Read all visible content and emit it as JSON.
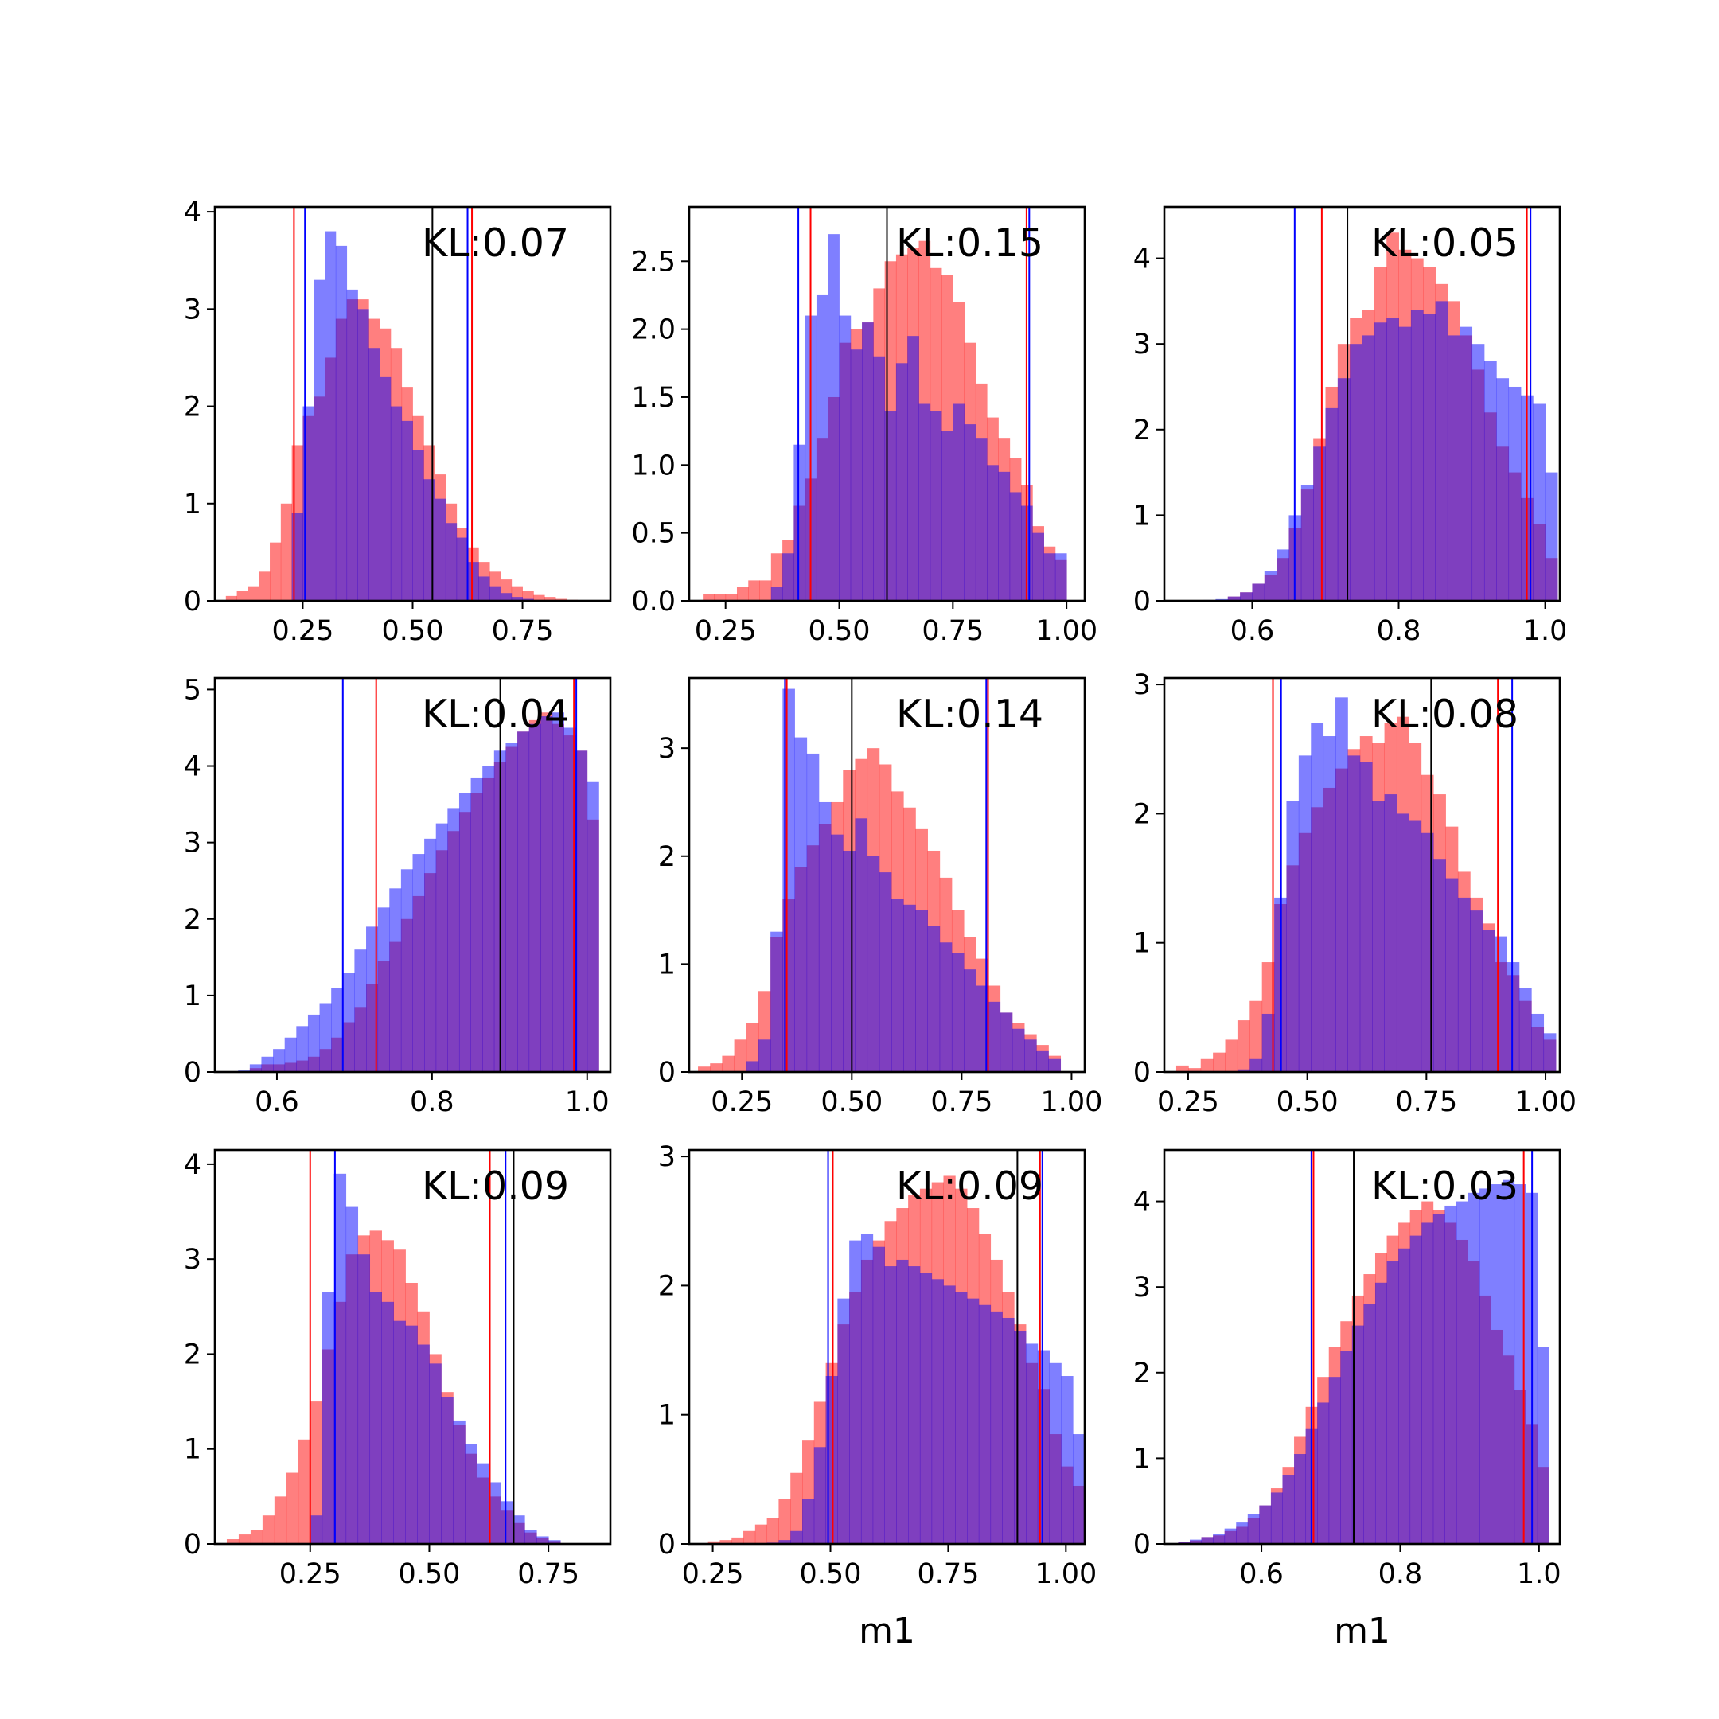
{
  "colors": {
    "red": "#ff0000",
    "blue": "#0000ff",
    "overlap": "#7a3fc4",
    "frame": "#000000"
  },
  "chart_data": [
    {
      "type": "histogram",
      "annotation": "KL:0.07",
      "xlabel": "",
      "xlim": [
        0.05,
        0.95
      ],
      "ylim": [
        0,
        4.05
      ],
      "xticks": [
        0.25,
        0.5,
        0.75
      ],
      "xtick_labels": [
        "0.25",
        "0.50",
        "0.75"
      ],
      "yticks": [
        0,
        1,
        2,
        3,
        4
      ],
      "ytick_labels": [
        "0",
        "1",
        "2",
        "3",
        "4"
      ],
      "bin_start": 0.075,
      "bin_width": 0.025,
      "red_values": [
        0.05,
        0.1,
        0.15,
        0.3,
        0.6,
        1.0,
        1.6,
        1.9,
        2.1,
        2.5,
        2.9,
        3.1,
        3.1,
        2.9,
        2.8,
        2.6,
        2.2,
        1.9,
        1.6,
        1.3,
        1.0,
        0.75,
        0.55,
        0.4,
        0.3,
        0.22,
        0.15,
        0.1,
        0.06,
        0.04,
        0.02,
        0.01
      ],
      "blue_values": [
        0,
        0,
        0,
        0,
        0,
        0,
        0.9,
        2.0,
        3.3,
        3.8,
        3.65,
        3.2,
        3.0,
        2.6,
        2.3,
        2.0,
        1.85,
        1.55,
        1.25,
        1.05,
        0.8,
        0.65,
        0.4,
        0.25,
        0.15,
        0.08,
        0.04,
        0.02,
        0,
        0,
        0,
        0
      ],
      "red_lines": [
        0.23,
        0.635
      ],
      "blue_lines": [
        0.255,
        0.625
      ],
      "black_lines": [
        0.545
      ]
    },
    {
      "type": "histogram",
      "annotation": "KL:0.15",
      "xlabel": "",
      "xlim": [
        0.17,
        1.04
      ],
      "ylim": [
        0,
        2.9
      ],
      "xticks": [
        0.25,
        0.5,
        0.75,
        1.0
      ],
      "xtick_labels": [
        "0.25",
        "0.50",
        "0.75",
        "1.00"
      ],
      "yticks": [
        0,
        0.5,
        1.0,
        1.5,
        2.0,
        2.5
      ],
      "ytick_labels": [
        "0.0",
        "0.5",
        "1.0",
        "1.5",
        "2.0",
        "2.5"
      ],
      "bin_start": 0.2,
      "bin_width": 0.025,
      "red_values": [
        0.05,
        0.05,
        0.05,
        0.1,
        0.15,
        0.15,
        0.35,
        0.45,
        0.7,
        0.9,
        1.2,
        1.5,
        1.9,
        2.0,
        2.05,
        2.3,
        2.5,
        2.55,
        2.6,
        2.65,
        2.45,
        2.4,
        2.2,
        1.9,
        1.6,
        1.35,
        1.2,
        1.05,
        0.85,
        0.55,
        0.4,
        0.3
      ],
      "blue_values": [
        0,
        0,
        0,
        0,
        0,
        0,
        0.1,
        0.35,
        1.15,
        2.1,
        2.25,
        2.7,
        2.1,
        1.85,
        2.05,
        1.8,
        1.4,
        1.75,
        1.95,
        1.45,
        1.4,
        1.25,
        1.45,
        1.3,
        1.2,
        1.0,
        0.95,
        0.8,
        0.7,
        0.5,
        0.35,
        0.35
      ],
      "red_lines": [
        0.437,
        0.912
      ],
      "blue_lines": [
        0.41,
        0.918
      ],
      "black_lines": [
        0.605
      ]
    },
    {
      "type": "histogram",
      "annotation": "KL:0.05",
      "xlabel": "",
      "xlim": [
        0.48,
        1.02
      ],
      "ylim": [
        0,
        4.6
      ],
      "xticks": [
        0.6,
        0.8,
        1.0
      ],
      "xtick_labels": [
        "0.6",
        "0.8",
        "1.0"
      ],
      "yticks": [
        0,
        1,
        2,
        3,
        4
      ],
      "ytick_labels": [
        "0",
        "1",
        "2",
        "3",
        "4"
      ],
      "bin_start": 0.5,
      "bin_width": 0.01667,
      "red_values": [
        0,
        0,
        0,
        0,
        0.05,
        0.1,
        0.2,
        0.3,
        0.5,
        0.85,
        1.3,
        1.9,
        2.5,
        3.0,
        3.3,
        3.4,
        3.9,
        4.3,
        4.1,
        4.0,
        3.9,
        3.7,
        3.5,
        3.1,
        2.7,
        2.2,
        1.8,
        1.5,
        1.2,
        0.9,
        0.5
      ],
      "blue_values": [
        0,
        0,
        0.01,
        0.02,
        0.05,
        0.1,
        0.2,
        0.35,
        0.6,
        1.0,
        1.35,
        1.8,
        2.25,
        2.6,
        3.0,
        3.1,
        3.25,
        3.3,
        3.2,
        3.4,
        3.35,
        3.5,
        3.1,
        3.2,
        3.0,
        2.8,
        2.6,
        2.5,
        2.4,
        2.3,
        1.5
      ],
      "red_lines": [
        0.695,
        0.975
      ],
      "blue_lines": [
        0.658,
        0.98
      ],
      "black_lines": [
        0.73
      ]
    },
    {
      "type": "histogram",
      "annotation": "KL:0.04",
      "xlabel": "",
      "xlim": [
        0.52,
        1.03
      ],
      "ylim": [
        0,
        5.15
      ],
      "xticks": [
        0.6,
        0.8,
        1.0
      ],
      "xtick_labels": [
        "0.6",
        "0.8",
        "1.0"
      ],
      "yticks": [
        0,
        1,
        2,
        3,
        4,
        5
      ],
      "ytick_labels": [
        "0",
        "1",
        "2",
        "3",
        "4",
        "5"
      ],
      "bin_start": 0.55,
      "bin_width": 0.015,
      "red_values": [
        0,
        0.05,
        0.1,
        0.1,
        0.12,
        0.15,
        0.2,
        0.3,
        0.45,
        0.65,
        0.85,
        1.15,
        1.45,
        1.7,
        2.0,
        2.3,
        2.6,
        2.9,
        3.15,
        3.4,
        3.65,
        3.85,
        4.05,
        4.25,
        4.45,
        4.6,
        4.7,
        4.55,
        4.4,
        4.2,
        3.3
      ],
      "blue_values": [
        0.02,
        0.1,
        0.2,
        0.3,
        0.45,
        0.6,
        0.75,
        0.9,
        1.1,
        1.3,
        1.6,
        1.9,
        2.15,
        2.4,
        2.65,
        2.85,
        3.05,
        3.25,
        3.45,
        3.65,
        3.85,
        4.0,
        4.2,
        4.3,
        4.45,
        4.55,
        4.65,
        4.7,
        4.5,
        4.2,
        3.8
      ],
      "red_lines": [
        0.728,
        0.983
      ],
      "blue_lines": [
        0.685,
        0.986
      ],
      "black_lines": [
        0.888
      ]
    },
    {
      "type": "histogram",
      "annotation": "KL:0.14",
      "xlabel": "",
      "xlim": [
        0.13,
        1.03
      ],
      "ylim": [
        0,
        3.65
      ],
      "xticks": [
        0.25,
        0.5,
        0.75,
        1.0
      ],
      "xtick_labels": [
        "0.25",
        "0.50",
        "0.75",
        "1.00"
      ],
      "yticks": [
        0,
        1,
        2,
        3
      ],
      "ytick_labels": [
        "0",
        "1",
        "2",
        "3"
      ],
      "bin_start": 0.15,
      "bin_width": 0.0275,
      "red_values": [
        0.05,
        0.08,
        0.15,
        0.3,
        0.45,
        0.75,
        1.25,
        1.6,
        1.9,
        2.1,
        2.3,
        2.5,
        2.8,
        2.9,
        3.0,
        2.85,
        2.6,
        2.45,
        2.25,
        2.05,
        1.8,
        1.5,
        1.25,
        1.05,
        0.8,
        0.55,
        0.45,
        0.35,
        0.25,
        0.15
      ],
      "blue_values": [
        0,
        0,
        0,
        0,
        0.1,
        0.3,
        1.3,
        3.55,
        3.1,
        2.95,
        2.5,
        2.2,
        2.05,
        2.35,
        2.0,
        1.85,
        1.6,
        1.55,
        1.5,
        1.35,
        1.2,
        1.1,
        0.95,
        0.8,
        0.65,
        0.55,
        0.4,
        0.3,
        0.2,
        0.12
      ],
      "red_lines": [
        0.352,
        0.81
      ],
      "blue_lines": [
        0.348,
        0.806
      ],
      "black_lines": [
        0.5
      ]
    },
    {
      "type": "histogram",
      "annotation": "KL:0.08",
      "xlabel": "",
      "xlim": [
        0.2,
        1.03
      ],
      "ylim": [
        0,
        3.05
      ],
      "xticks": [
        0.25,
        0.5,
        0.75,
        1.0
      ],
      "xtick_labels": [
        "0.25",
        "0.50",
        "0.75",
        "1.00"
      ],
      "yticks": [
        0,
        1,
        2,
        3
      ],
      "ytick_labels": [
        "0",
        "1",
        "2",
        "3"
      ],
      "bin_start": 0.225,
      "bin_width": 0.0257,
      "red_values": [
        0.05,
        0.03,
        0.1,
        0.15,
        0.25,
        0.4,
        0.55,
        0.85,
        1.3,
        1.6,
        1.85,
        2.05,
        2.2,
        2.35,
        2.5,
        2.6,
        2.55,
        2.7,
        2.75,
        2.55,
        2.3,
        2.15,
        1.9,
        1.55,
        1.35,
        1.15,
        0.85,
        0.75,
        0.55,
        0.35,
        0.25
      ],
      "blue_values": [
        0,
        0,
        0,
        0,
        0,
        0.02,
        0.1,
        0.45,
        1.35,
        2.1,
        2.45,
        2.7,
        2.6,
        2.9,
        2.45,
        2.4,
        2.1,
        2.15,
        2.0,
        1.95,
        1.85,
        1.65,
        1.5,
        1.35,
        1.25,
        1.1,
        1.05,
        0.85,
        0.65,
        0.45,
        0.3
      ],
      "red_lines": [
        0.428,
        0.9
      ],
      "blue_lines": [
        0.445,
        0.93
      ],
      "black_lines": [
        0.76
      ]
    },
    {
      "type": "histogram",
      "annotation": "KL:0.09",
      "xlabel": "",
      "xlim": [
        0.05,
        0.88
      ],
      "ylim": [
        0,
        4.15
      ],
      "xticks": [
        0.25,
        0.5,
        0.75
      ],
      "xtick_labels": [
        "0.25",
        "0.50",
        "0.75"
      ],
      "yticks": [
        0,
        1,
        2,
        3,
        4
      ],
      "ytick_labels": [
        "0",
        "1",
        "2",
        "3",
        "4"
      ],
      "bin_start": 0.075,
      "bin_width": 0.025,
      "red_values": [
        0.05,
        0.1,
        0.15,
        0.3,
        0.5,
        0.75,
        1.1,
        1.5,
        2.05,
        2.55,
        3.05,
        3.25,
        3.3,
        3.2,
        3.1,
        2.75,
        2.45,
        2.0,
        1.6,
        1.25,
        0.95,
        0.7,
        0.5,
        0.35,
        0.22,
        0.12,
        0.06,
        0.03
      ],
      "blue_values": [
        0,
        0,
        0,
        0,
        0,
        0,
        0,
        0.3,
        2.65,
        3.9,
        3.55,
        3.05,
        2.65,
        2.55,
        2.35,
        2.3,
        2.1,
        1.9,
        1.55,
        1.3,
        1.05,
        0.85,
        0.65,
        0.45,
        0.3,
        0.15,
        0.08,
        0.04
      ],
      "red_lines": [
        0.25,
        0.627
      ],
      "blue_lines": [
        0.302,
        0.66
      ],
      "black_lines": [
        0.677
      ]
    },
    {
      "type": "histogram",
      "annotation": "KL:0.09",
      "xlabel": "m1",
      "xlim": [
        0.2,
        1.04
      ],
      "ylim": [
        0,
        3.05
      ],
      "xticks": [
        0.25,
        0.5,
        0.75,
        1.0
      ],
      "xtick_labels": [
        "0.25",
        "0.50",
        "0.75",
        "1.00"
      ],
      "yticks": [
        0,
        1,
        2,
        3
      ],
      "ytick_labels": [
        "0",
        "1",
        "2",
        "3"
      ],
      "bin_start": 0.24,
      "bin_width": 0.025,
      "red_values": [
        0.02,
        0.03,
        0.05,
        0.1,
        0.15,
        0.2,
        0.35,
        0.55,
        0.8,
        1.1,
        1.4,
        1.7,
        1.95,
        2.2,
        2.35,
        2.5,
        2.6,
        2.7,
        2.75,
        2.8,
        2.85,
        2.75,
        2.6,
        2.4,
        2.2,
        1.95,
        1.7,
        1.4,
        1.2,
        0.85,
        0.6,
        0.45
      ],
      "blue_values": [
        0,
        0,
        0,
        0,
        0,
        0.01,
        0.03,
        0.1,
        0.35,
        0.75,
        1.3,
        1.9,
        2.35,
        2.4,
        2.3,
        2.15,
        2.2,
        2.15,
        2.1,
        2.05,
        2.0,
        1.95,
        1.9,
        1.85,
        1.8,
        1.75,
        1.65,
        1.55,
        1.5,
        1.4,
        1.3,
        0.85
      ],
      "red_lines": [
        0.505,
        0.945
      ],
      "blue_lines": [
        0.495,
        0.95
      ],
      "black_lines": [
        0.897
      ]
    },
    {
      "type": "histogram",
      "annotation": "KL:0.03",
      "xlabel": "m1",
      "xlim": [
        0.46,
        1.03
      ],
      "ylim": [
        0,
        4.6
      ],
      "xticks": [
        0.6,
        0.8,
        1.0
      ],
      "xtick_labels": [
        "0.6",
        "0.8",
        "1.0"
      ],
      "yticks": [
        0,
        1,
        2,
        3,
        4
      ],
      "ytick_labels": [
        "0",
        "1",
        "2",
        "3",
        "4"
      ],
      "bin_start": 0.48,
      "bin_width": 0.0167,
      "red_values": [
        0.02,
        0.04,
        0.08,
        0.1,
        0.15,
        0.2,
        0.3,
        0.45,
        0.65,
        0.9,
        1.25,
        1.6,
        1.95,
        2.3,
        2.6,
        2.9,
        3.15,
        3.4,
        3.6,
        3.75,
        3.9,
        4.0,
        3.9,
        3.75,
        3.55,
        3.3,
        2.9,
        2.5,
        2.2,
        1.8,
        1.4,
        0.9
      ],
      "blue_values": [
        0.02,
        0.05,
        0.08,
        0.12,
        0.18,
        0.25,
        0.35,
        0.45,
        0.6,
        0.8,
        1.05,
        1.35,
        1.65,
        1.95,
        2.25,
        2.55,
        2.8,
        3.05,
        3.3,
        3.45,
        3.6,
        3.75,
        3.85,
        3.95,
        4.0,
        4.1,
        4.15,
        4.2,
        4.25,
        4.2,
        4.1,
        2.3
      ],
      "red_lines": [
        0.675,
        0.978
      ],
      "blue_lines": [
        0.672,
        0.99
      ],
      "black_lines": [
        0.733
      ]
    }
  ]
}
